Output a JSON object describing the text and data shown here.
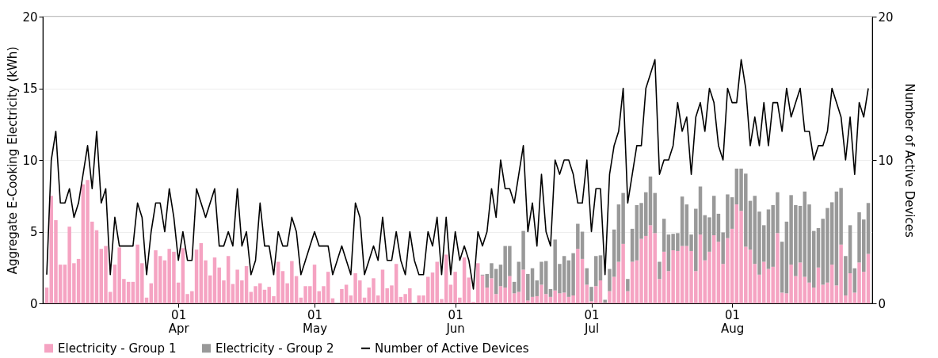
{
  "chart_data": {
    "type": "bar",
    "stacked": true,
    "ylabel": "Aggregate E-Cooking Electricity (kWh)",
    "y2label": "Number of Active Devices",
    "ylim": [
      0,
      20
    ],
    "yticks": [
      0,
      5,
      10,
      15,
      20
    ],
    "y2lim": [
      0,
      20
    ],
    "y2ticks": [
      0,
      10,
      20
    ],
    "xlim": [
      "--03-03",
      "--08-31"
    ],
    "xticks": [
      {
        "value": "--04-01",
        "label": "01\nApr"
      },
      {
        "value": "--05-01",
        "label": "01\nMay"
      },
      {
        "value": "--06-01",
        "label": "01\nJun"
      },
      {
        "value": "--07-01",
        "label": "01\nJul"
      },
      {
        "value": "--08-01",
        "label": "01\nAug"
      }
    ],
    "grid": "y",
    "legend": "bottom",
    "x": [
      "--03-03",
      "--03-04",
      "--03-05",
      "--03-06",
      "--03-07",
      "--03-08",
      "--03-09",
      "--03-10",
      "--03-11",
      "--03-12",
      "--03-13",
      "--03-14",
      "--03-15",
      "--03-16",
      "--03-17",
      "--03-18",
      "--03-19",
      "--03-20",
      "--03-21",
      "--03-22",
      "--03-23",
      "--03-24",
      "--03-25",
      "--03-26",
      "--03-27",
      "--03-28",
      "--03-29",
      "--03-30",
      "--03-31",
      "--04-01",
      "--04-02",
      "--04-03",
      "--04-04",
      "--04-05",
      "--04-06",
      "--04-07",
      "--04-08",
      "--04-09",
      "--04-10",
      "--04-11",
      "--04-12",
      "--04-13",
      "--04-14",
      "--04-15",
      "--04-16",
      "--04-17",
      "--04-18",
      "--04-19",
      "--04-20",
      "--04-21",
      "--04-22",
      "--04-23",
      "--04-24",
      "--04-25",
      "--04-26",
      "--04-27",
      "--04-28",
      "--04-29",
      "--04-30",
      "--05-01",
      "--05-02",
      "--05-03",
      "--05-04",
      "--05-05",
      "--05-06",
      "--05-07",
      "--05-08",
      "--05-09",
      "--05-10",
      "--05-11",
      "--05-12",
      "--05-13",
      "--05-14",
      "--05-15",
      "--05-16",
      "--05-17",
      "--05-18",
      "--05-19",
      "--05-20",
      "--05-21",
      "--05-22",
      "--05-23",
      "--05-24",
      "--05-25",
      "--05-26",
      "--05-27",
      "--05-28",
      "--05-29",
      "--05-30",
      "--05-31",
      "--06-01",
      "--06-02",
      "--06-03",
      "--06-04",
      "--06-05",
      "--06-06",
      "--06-07",
      "--06-08",
      "--06-09",
      "--06-10",
      "--06-11",
      "--06-12",
      "--06-13",
      "--06-14",
      "--06-15",
      "--06-16",
      "--06-17",
      "--06-18",
      "--06-19",
      "--06-20",
      "--06-21",
      "--06-22",
      "--06-23",
      "--06-24",
      "--06-25",
      "--06-26",
      "--06-27",
      "--06-28",
      "--06-29",
      "--06-30",
      "--07-01",
      "--07-02",
      "--07-03",
      "--07-04",
      "--07-05",
      "--07-06",
      "--07-07",
      "--07-08",
      "--07-09",
      "--07-10",
      "--07-11",
      "--07-12",
      "--07-13",
      "--07-14",
      "--07-15",
      "--07-16",
      "--07-17",
      "--07-18",
      "--07-19",
      "--07-20",
      "--07-21",
      "--07-22",
      "--07-23",
      "--07-24",
      "--07-25",
      "--07-26",
      "--07-27",
      "--07-28",
      "--07-29",
      "--07-30",
      "--07-31",
      "--08-01",
      "--08-02",
      "--08-03",
      "--08-04",
      "--08-05",
      "--08-06",
      "--08-07",
      "--08-08",
      "--08-09",
      "--08-10",
      "--08-11",
      "--08-12",
      "--08-13",
      "--08-14",
      "--08-15",
      "--08-16",
      "--08-17",
      "--08-18",
      "--08-19",
      "--08-20",
      "--08-21",
      "--08-22",
      "--08-23",
      "--08-24",
      "--08-25",
      "--08-26",
      "--08-27",
      "--08-28",
      "--08-29",
      "--08-30",
      "--08-31"
    ],
    "series": [
      {
        "name": "Electricity - Group 1",
        "color": "#f5a3c2",
        "values": [
          1.1,
          7.5,
          5.8,
          2.7,
          2.7,
          5.35,
          2.8,
          3.1,
          8.3,
          8.6,
          5.7,
          5.1,
          3.8,
          4.0,
          0.8,
          2.7,
          3.9,
          1.7,
          1.5,
          1.5,
          4.1,
          2.8,
          0.4,
          1.4,
          3.7,
          3.3,
          3.0,
          3.8,
          3.6,
          1.45,
          3.85,
          0.65,
          0.85,
          3.75,
          4.2,
          3.0,
          1.95,
          3.2,
          2.5,
          1.6,
          3.3,
          1.35,
          2.35,
          1.6,
          2.6,
          0.8,
          1.2,
          1.4,
          0.95,
          1.15,
          0.5,
          2.9,
          2.25,
          1.4,
          2.95,
          1.9,
          0.4,
          1.2,
          1.2,
          2.7,
          0.85,
          1.2,
          2.2,
          0.35,
          0,
          1.0,
          1.3,
          0.55,
          2.1,
          1.6,
          0.4,
          1.1,
          1.75,
          0.55,
          2.35,
          1.05,
          1.25,
          2.75,
          0.45,
          0.65,
          1.05,
          0,
          0.55,
          0.55,
          1.85,
          2.15,
          2.9,
          0.3,
          3.4,
          1.3,
          2.2,
          0.4,
          3.2,
          1.8,
          0.1,
          2.8,
          1.95,
          1.1,
          1.75,
          0.65,
          1.2,
          1.1,
          1.9,
          0.7,
          0.8,
          2.35,
          0.2,
          0.45,
          0.5,
          1.3,
          0.65,
          0.45,
          0.9,
          0.7,
          0.75,
          0.45,
          0.55,
          3.8,
          3.1,
          1.3,
          0.15,
          1.2,
          1.6,
          0.05,
          0.85,
          1.85,
          2.9,
          4.15,
          0.85,
          2.9,
          3.0,
          4.5,
          4.7,
          5.45,
          4.9,
          1.7,
          3.6,
          2.25,
          3.7,
          3.65,
          4.0,
          4.0,
          3.65,
          2.25,
          4.8,
          3.0,
          3.6,
          4.75,
          4.3,
          2.75,
          4.55,
          5.2,
          6.9,
          6.45,
          3.95,
          3.75,
          2.75,
          2.0,
          2.9,
          2.4,
          2.55,
          4.9,
          0.75,
          0.7,
          2.7,
          1.9,
          2.85,
          1.85,
          1.45,
          1.1,
          2.5,
          1.3,
          1.45,
          2.7,
          1.25,
          4.1,
          0.55,
          2.1,
          0.75,
          2.85,
          2.2,
          3.45
        ]
      },
      {
        "name": "Electricity - Group 2",
        "color": "#999999",
        "values": [
          null,
          null,
          null,
          null,
          null,
          null,
          null,
          null,
          null,
          null,
          null,
          null,
          null,
          null,
          null,
          null,
          null,
          null,
          null,
          null,
          null,
          null,
          null,
          null,
          null,
          null,
          null,
          null,
          null,
          null,
          null,
          null,
          null,
          null,
          null,
          null,
          null,
          null,
          null,
          null,
          null,
          null,
          null,
          null,
          null,
          null,
          null,
          null,
          null,
          null,
          null,
          null,
          null,
          null,
          null,
          null,
          null,
          null,
          null,
          null,
          null,
          null,
          null,
          null,
          null,
          null,
          null,
          null,
          null,
          null,
          null,
          null,
          null,
          null,
          null,
          null,
          null,
          null,
          null,
          null,
          null,
          null,
          null,
          null,
          null,
          null,
          null,
          null,
          null,
          null,
          null,
          null,
          null,
          null,
          null,
          null,
          0.05,
          0.95,
          1.05,
          1.75,
          1.5,
          2.9,
          2.1,
          0.8,
          2.1,
          2.7,
          1.85,
          2.0,
          1.1,
          1.6,
          2.3,
          0.55,
          3.55,
          2.05,
          2.55,
          2.55,
          2.95,
          1.75,
          1.9,
          1.15,
          1.0,
          2.1,
          1.75,
          0.2,
          1.55,
          3.3,
          4.0,
          3.55,
          0.85,
          2.3,
          3.85,
          2.5,
          3.05,
          3.4,
          2.8,
          1.2,
          2.3,
          2.55,
          1.15,
          1.25,
          3.45,
          2.9,
          1.15,
          4.35,
          3.35,
          3.15,
          2.4,
          2.75,
          1.95,
          2.2,
          3.05,
          2.2,
          2.5,
          2.95,
          5.1,
          3.4,
          4.75,
          4.4,
          2.55,
          4.15,
          4.3,
          2.85,
          3.55,
          5.0,
          4.85,
          4.95,
          3.95,
          5.95,
          5.45,
          3.95,
          2.75,
          4.6,
          5.2,
          4.35,
          6.55,
          3.95,
          2.75,
          3.35,
          1.7,
          3.5,
          3.65,
          3.55
        ]
      },
      {
        "name": "Number of Active Devices",
        "color": "#000000",
        "type": "line",
        "axis": "y2",
        "values": [
          2,
          10,
          12,
          7,
          7,
          8,
          6,
          7,
          9,
          11,
          8,
          12,
          7,
          8,
          2,
          6,
          4,
          4,
          4,
          4,
          7,
          6,
          2,
          5,
          7,
          7,
          5,
          8,
          6,
          3,
          5,
          3,
          3,
          8,
          7,
          6,
          7,
          8,
          4,
          4,
          5,
          4,
          8,
          4,
          5,
          2,
          3,
          7,
          4,
          4,
          2,
          5,
          4,
          4,
          6,
          5,
          2,
          3,
          4,
          5,
          4,
          4,
          4,
          2,
          3,
          4,
          3,
          2,
          7,
          6,
          2,
          3,
          4,
          3,
          6,
          3,
          3,
          5,
          3,
          2,
          5,
          3,
          2,
          2,
          5,
          4,
          6,
          2,
          6,
          2,
          5,
          3,
          4,
          3,
          1,
          5,
          4,
          5,
          8,
          6,
          10,
          8,
          8,
          7,
          9,
          11,
          5,
          7,
          4,
          9,
          5,
          4,
          10,
          9,
          10,
          10,
          9,
          7,
          7,
          10,
          5,
          8,
          8,
          2,
          9,
          11,
          12,
          15,
          7,
          9,
          11,
          11,
          15,
          16,
          17,
          9,
          10,
          10,
          11,
          14,
          12,
          13,
          9,
          13,
          14,
          12,
          15,
          14,
          11,
          10,
          15,
          14,
          14,
          17,
          15,
          11,
          13,
          11,
          14,
          11,
          14,
          14,
          12,
          15,
          13,
          14,
          15,
          12,
          12,
          10,
          11,
          11,
          12,
          15,
          14,
          13,
          10,
          13,
          9,
          14,
          13,
          15
        ]
      }
    ]
  }
}
